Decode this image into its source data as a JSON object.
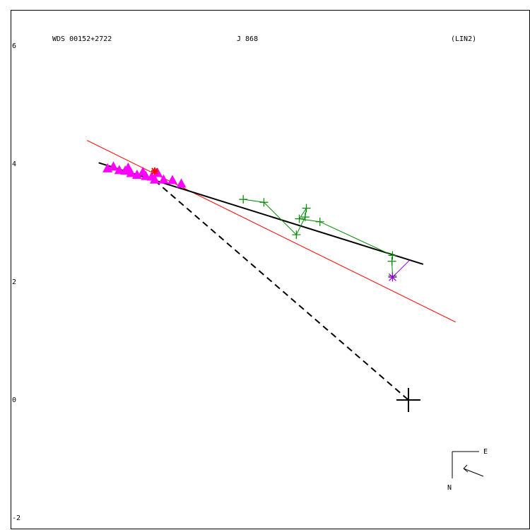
{
  "header": {
    "wds_id": "WDS 00152+2722",
    "discoverer": "J   868",
    "orbit_code": "(LIN2)"
  },
  "compass": {
    "east_label": "E",
    "north_label": "N"
  },
  "chart_data": {
    "type": "scatter",
    "title": "",
    "xlabel": "",
    "ylabel": "",
    "xlim": [
      -6.8,
      2.0
    ],
    "ylim": [
      -2,
      6.2
    ],
    "y_ticks": [
      "6",
      "4",
      "2",
      "0",
      "-2"
    ],
    "y_tick_values": [
      6,
      4,
      2,
      0,
      -2
    ],
    "grid": false,
    "primary": {
      "x": 0,
      "y": 0
    },
    "fit_line": {
      "color": "#000000",
      "from": [
        -5.25,
        4.02
      ],
      "to": [
        0.25,
        2.3
      ]
    },
    "reference_line": {
      "color": "#ff0000",
      "from": [
        -5.45,
        4.4
      ],
      "to": [
        0.8,
        1.32
      ]
    },
    "periastron_line": {
      "color": "#000000",
      "style": "dashed",
      "from": [
        -4.3,
        3.72
      ],
      "to": [
        0,
        0
      ]
    },
    "series": [
      {
        "marker": "triangle",
        "color": "#ff00ff",
        "x": [
          -5.1,
          -5.0,
          -4.9,
          -4.8,
          -4.75,
          -4.7,
          -4.6,
          -4.5,
          -4.45,
          -4.35,
          -4.3,
          -4.15,
          -4.0,
          -3.85,
          -4.25
        ],
        "y": [
          3.93,
          3.96,
          3.9,
          3.89,
          3.94,
          3.85,
          3.82,
          3.87,
          3.8,
          3.79,
          3.74,
          3.74,
          3.73,
          3.67,
          3.85
        ]
      },
      {
        "marker": "plus",
        "color": "#008800",
        "x": [
          -2.8,
          -2.45,
          -1.9,
          -1.75,
          -1.73,
          -1.85,
          -1.5,
          -0.27,
          -0.28,
          -0.27
        ],
        "y": [
          3.4,
          3.35,
          2.8,
          3.1,
          3.25,
          3.07,
          3.02,
          2.45,
          2.35,
          2.1
        ]
      },
      {
        "marker": "asterisk",
        "color": "#9400d3",
        "x": [
          -0.27
        ],
        "y": [
          2.08
        ]
      },
      {
        "marker": "star",
        "color": "#ff0000",
        "x": [
          -4.3
        ],
        "y": [
          3.88
        ]
      }
    ]
  }
}
